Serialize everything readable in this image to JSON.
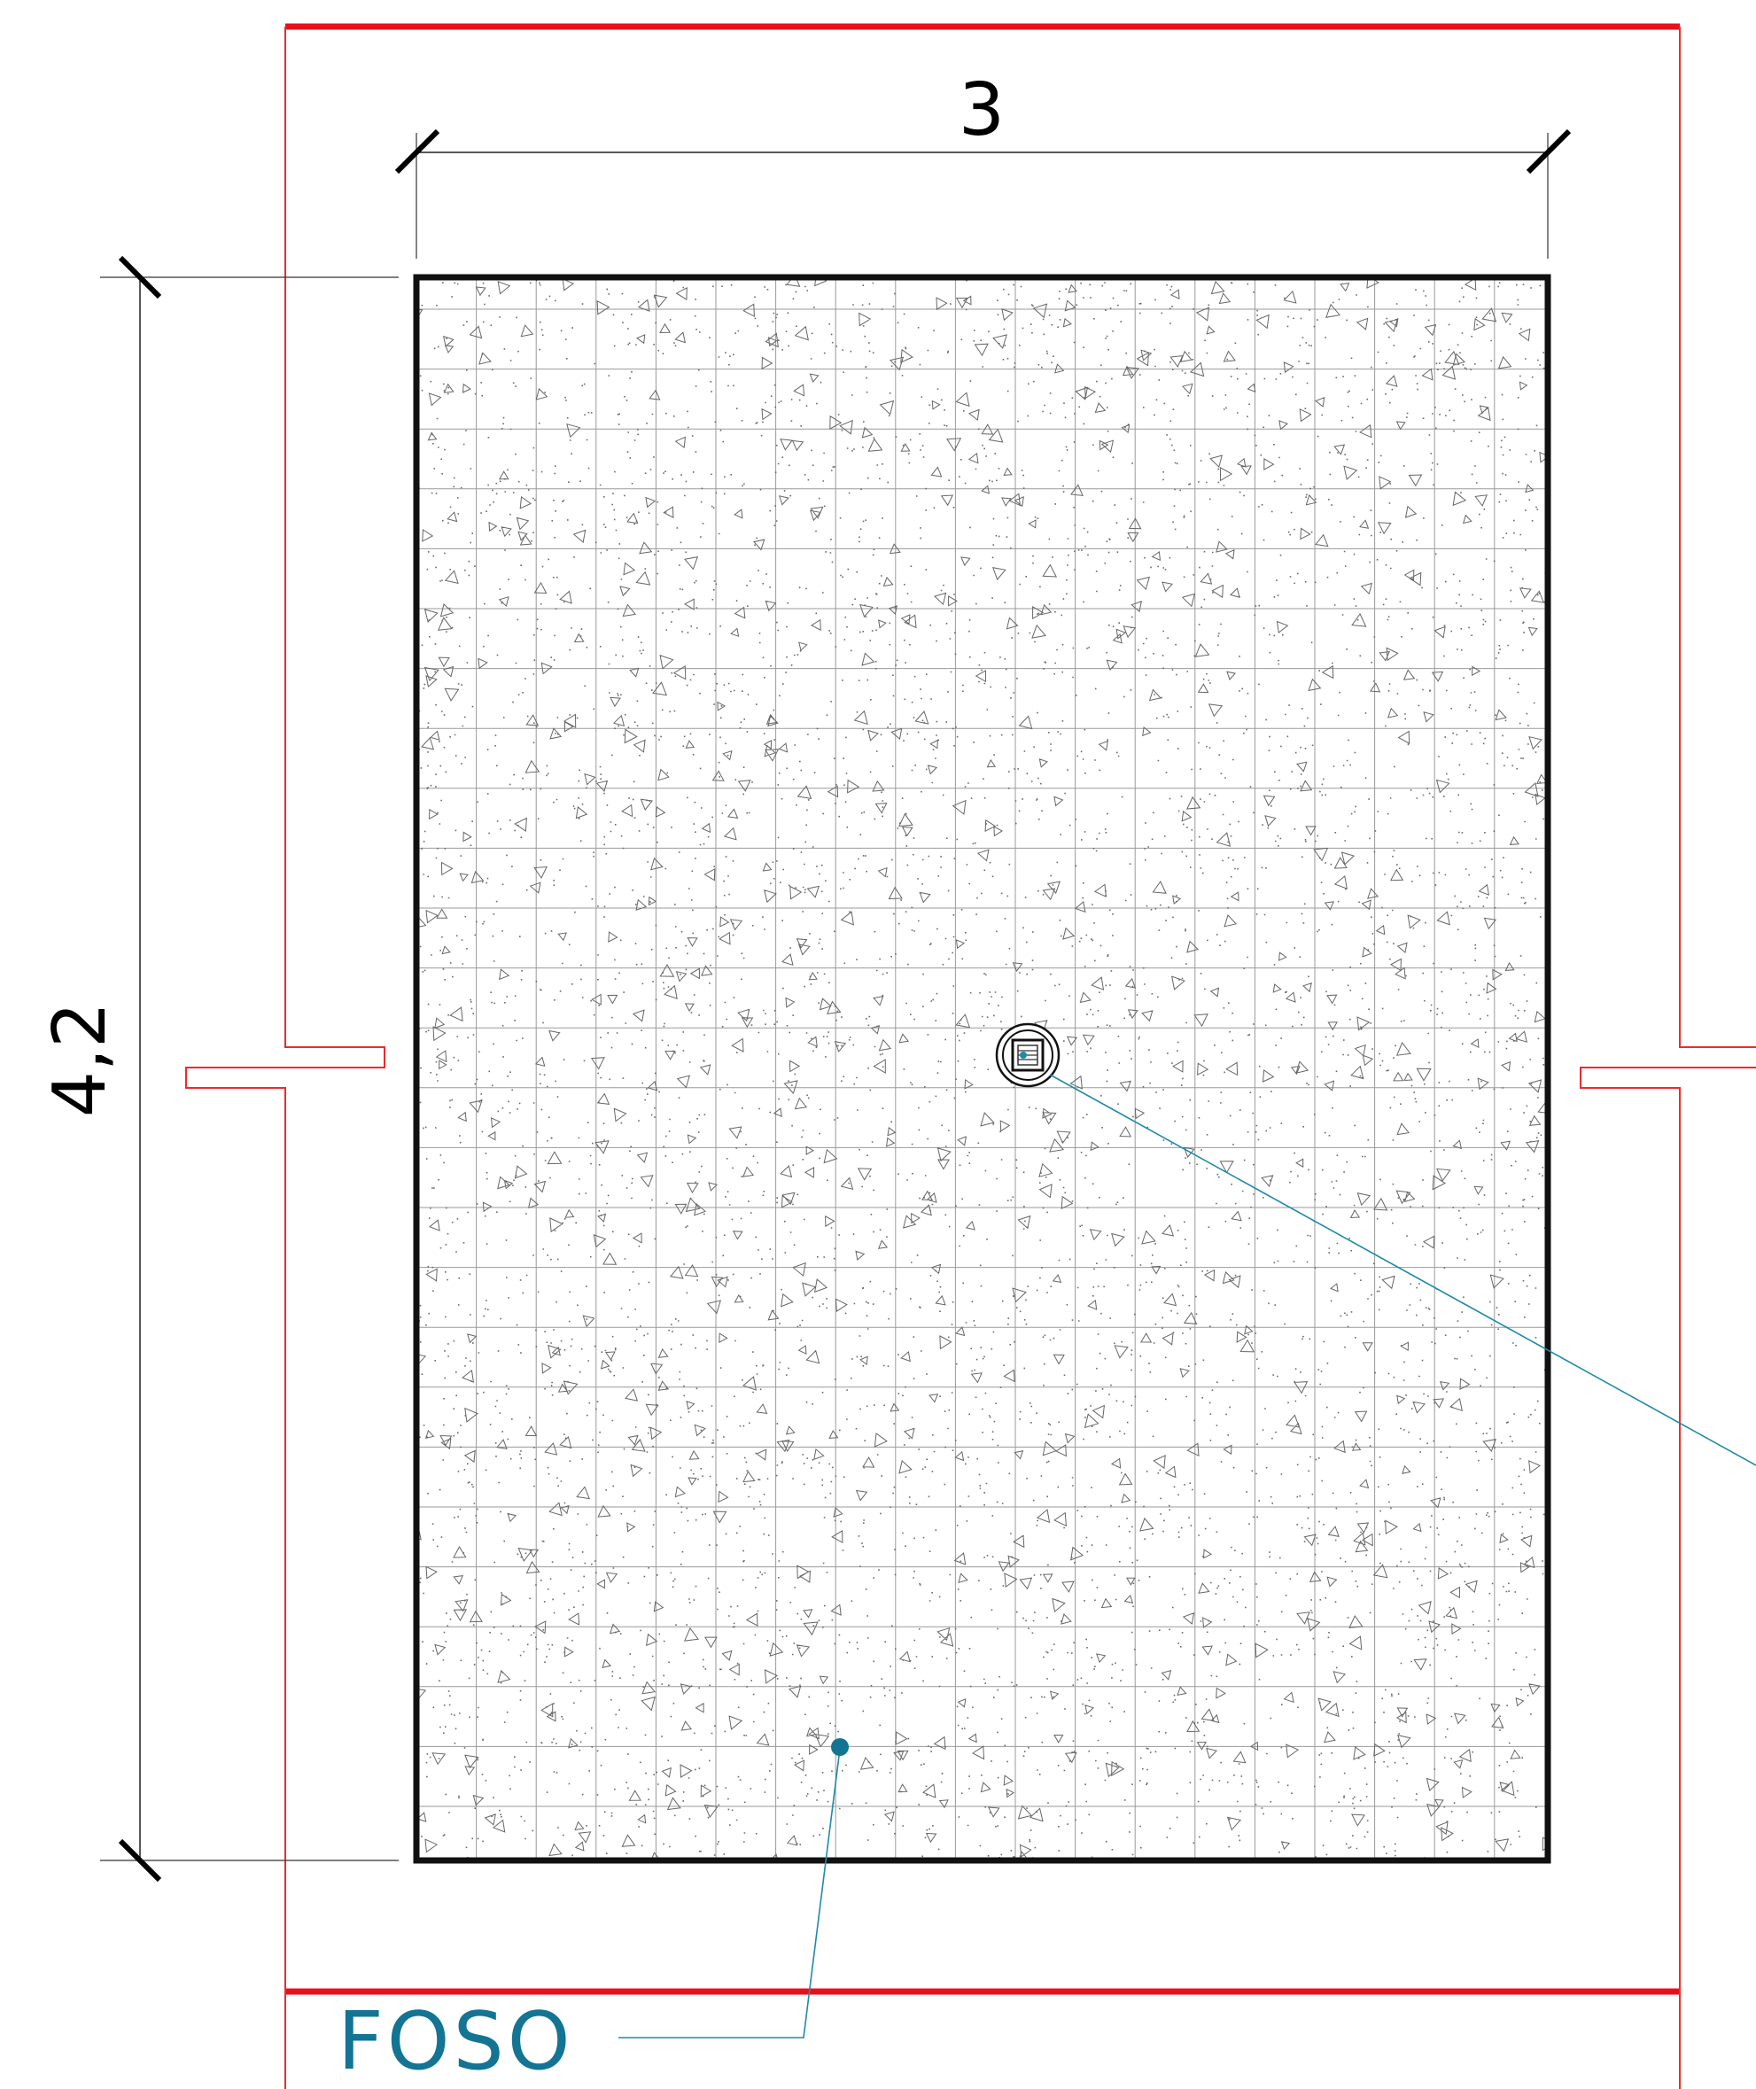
{
  "drawing": {
    "dimension_width": "3",
    "dimension_height": "4,2",
    "label_pit": "FOSO"
  },
  "colors": {
    "wall_line": "#e8101a",
    "wall_thin": "#ee2a2a",
    "outline": "#111111",
    "grid": "#9a9a9a",
    "leader": "#1f8aa8",
    "label": "#137493"
  },
  "icons": {
    "drain": "floor-drain-icon"
  }
}
